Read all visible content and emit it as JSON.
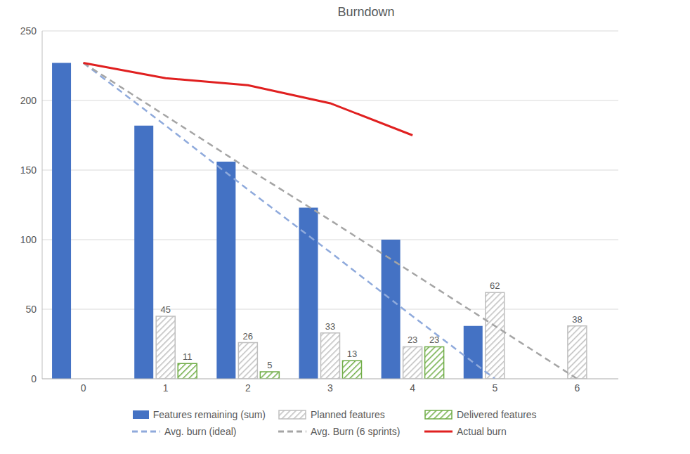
{
  "chart_data": {
    "type": "bar",
    "title": "Burndown",
    "categories": [
      "0",
      "1",
      "2",
      "3",
      "4",
      "5",
      "6"
    ],
    "ylim": [
      0,
      250
    ],
    "yticks": [
      0,
      50,
      100,
      150,
      200,
      250
    ],
    "grid": true,
    "legend": "bottom",
    "series": [
      {
        "name": "Features remaining (sum)",
        "type": "bar",
        "color": "#4472c4",
        "values": [
          227,
          182,
          156,
          123,
          100,
          38,
          null
        ]
      },
      {
        "name": "Planned features",
        "type": "bar",
        "color": "#bfbfbf",
        "data_labels": true,
        "values": [
          null,
          45,
          26,
          33,
          23,
          62,
          38
        ]
      },
      {
        "name": "Delivered features",
        "type": "bar",
        "color": "#70ad47",
        "data_labels": true,
        "values": [
          null,
          11,
          5,
          13,
          23,
          null,
          null
        ]
      },
      {
        "name": "Avg. burn (ideal)",
        "type": "line",
        "color": "#8faadc",
        "line_style": "dashed",
        "values": [
          227,
          182,
          136,
          91,
          45,
          0,
          null
        ]
      },
      {
        "name": "Avg. Burn (6 sprints)",
        "type": "line",
        "color": "#a5a5a5",
        "line_style": "dashed",
        "values": [
          227,
          189,
          151,
          114,
          76,
          38,
          0
        ]
      },
      {
        "name": "Actual burn",
        "type": "line",
        "color": "#e02020",
        "line_style": "solid",
        "values": [
          227,
          216,
          211,
          198,
          175,
          null,
          null
        ]
      }
    ]
  }
}
